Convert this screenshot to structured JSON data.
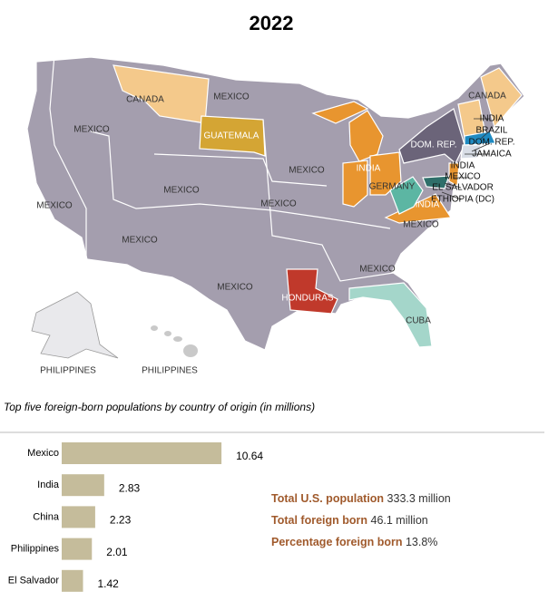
{
  "title": "2022",
  "map": {
    "labels": [
      "CANADA",
      "MEXICO",
      "MEXICO",
      "GUATEMALA",
      "CANADA",
      "INDIA",
      "BRAZIL",
      "DOM. REP.",
      "DOM. REP.",
      "JAMAICA",
      "INDIA",
      "MEXICO",
      "INDIA",
      "MEXICO",
      "EL SALVADOR",
      "GERMANY",
      "MEXICO",
      "ETHIOPIA (DC)",
      "MEXICO",
      "MEXICO",
      "INDIA",
      "MEXICO",
      "MEXICO",
      "MEXICO",
      "MEXICO",
      "HONDURAS",
      "CUBA",
      "PHILIPPINES",
      "PHILIPPINES"
    ]
  },
  "chart_data": {
    "type": "bar",
    "orientation": "horizontal",
    "title": "Top five foreign-born populations by country of origin (in millions)",
    "categories": [
      "Mexico",
      "India",
      "China",
      "Philippines",
      "El Salvador"
    ],
    "values": [
      10.64,
      2.83,
      2.23,
      2.01,
      1.42
    ],
    "color": "#c5bc9b"
  },
  "stats": [
    {
      "label": "Total U.S. population",
      "value": "333.3 million"
    },
    {
      "label": "Total foreign born",
      "value": "46.1 million"
    },
    {
      "label": "Percentage foreign born",
      "value": "13.8%"
    }
  ]
}
